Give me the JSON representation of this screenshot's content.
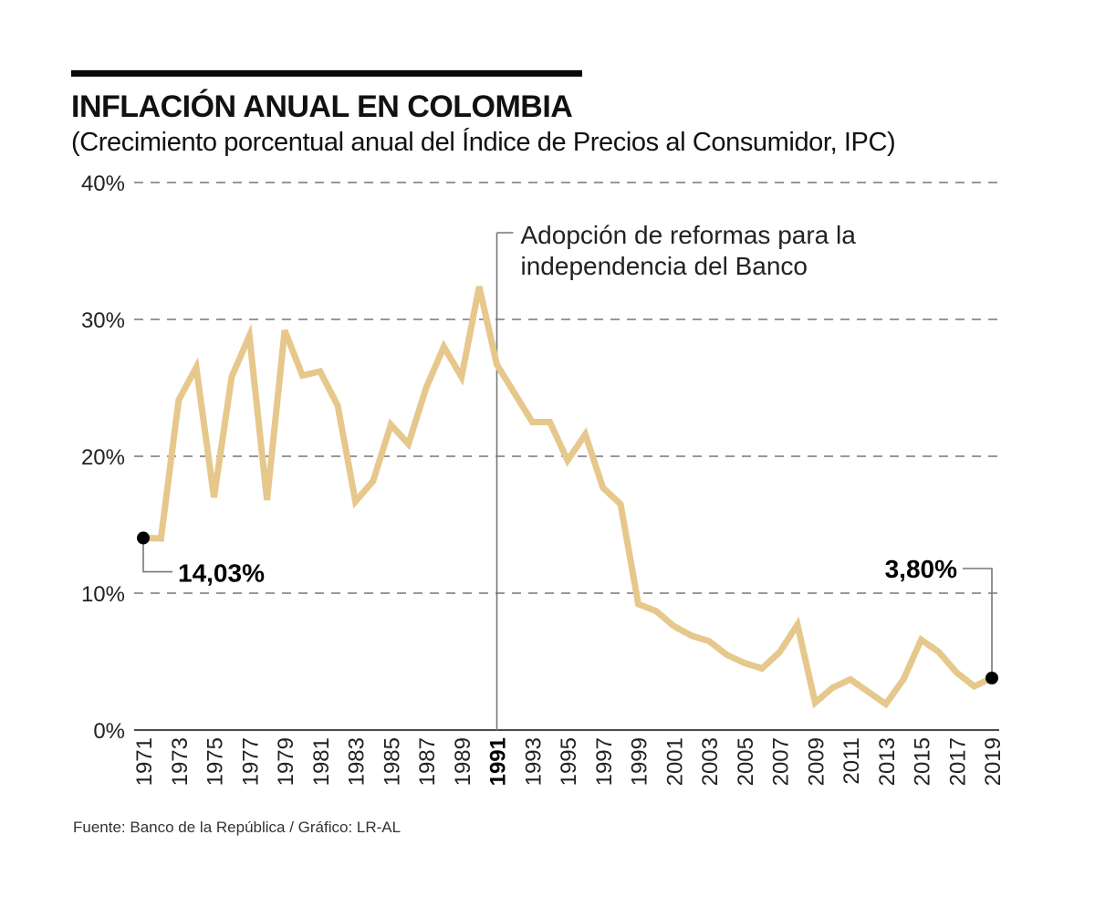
{
  "header": {
    "title": "INFLACIÓN ANUAL EN COLOMBIA",
    "subtitle": "(Crecimiento porcentual anual del Índice de Precios al Consumidor, IPC)"
  },
  "footer": {
    "source": "Fuente: Banco de la República / Gráfico: LR-AL"
  },
  "colors": {
    "line": "#E6C88C",
    "grid": "#777777",
    "axis": "#111111",
    "marker": "#000000",
    "annotation_line": "#777777"
  },
  "chart_data": {
    "type": "line",
    "title": "INFLACIÓN ANUAL EN COLOMBIA",
    "subtitle": "(Crecimiento porcentual anual del Índice de Precios al Consumidor, IPC)",
    "xlabel": "",
    "ylabel": "",
    "ylim": [
      0,
      40
    ],
    "xlim": [
      1971,
      2019
    ],
    "grid": true,
    "y_ticks": [
      0,
      10,
      20,
      30,
      40
    ],
    "y_tick_labels": [
      "0%",
      "10%",
      "20%",
      "30%",
      "40%"
    ],
    "x_tick_labels": [
      "1971",
      "1973",
      "1975",
      "1977",
      "1979",
      "1981",
      "1983",
      "1985",
      "1987",
      "1989",
      "1991",
      "1993",
      "1995",
      "1997",
      "1999",
      "2001",
      "2003",
      "2005",
      "2007",
      "2009",
      "2011",
      "2013",
      "2015",
      "2017",
      "2019"
    ],
    "x_tick_bold": "1991",
    "x": [
      1971,
      1972,
      1973,
      1974,
      1975,
      1976,
      1977,
      1978,
      1979,
      1980,
      1981,
      1982,
      1983,
      1984,
      1985,
      1986,
      1987,
      1988,
      1989,
      1990,
      1991,
      1992,
      1993,
      1994,
      1995,
      1996,
      1997,
      1998,
      1999,
      2000,
      2001,
      2002,
      2003,
      2004,
      2005,
      2006,
      2007,
      2008,
      2009,
      2010,
      2011,
      2012,
      2013,
      2014,
      2015,
      2016,
      2017,
      2018,
      2019
    ],
    "series": [
      {
        "name": "Inflación anual",
        "values": [
          14.03,
          14.0,
          24.1,
          26.5,
          17.0,
          25.8,
          28.8,
          16.8,
          29.2,
          25.9,
          26.2,
          23.7,
          16.7,
          18.2,
          22.3,
          20.9,
          25.0,
          28.0,
          25.8,
          32.4,
          26.7,
          24.6,
          22.5,
          22.5,
          19.7,
          21.6,
          17.7,
          16.5,
          9.2,
          8.7,
          7.6,
          6.9,
          6.5,
          5.5,
          4.9,
          4.5,
          5.7,
          7.7,
          2.0,
          3.1,
          3.7,
          2.8,
          1.9,
          3.7,
          6.6,
          5.7,
          4.2,
          3.2,
          3.8
        ]
      }
    ],
    "annotations": [
      {
        "x": 1991,
        "text_lines": [
          "Adopción de reformas para la",
          "independencia del Banco"
        ]
      },
      {
        "x": 1971,
        "label": "14,03%"
      },
      {
        "x": 2019,
        "label": "3,80%"
      }
    ]
  }
}
